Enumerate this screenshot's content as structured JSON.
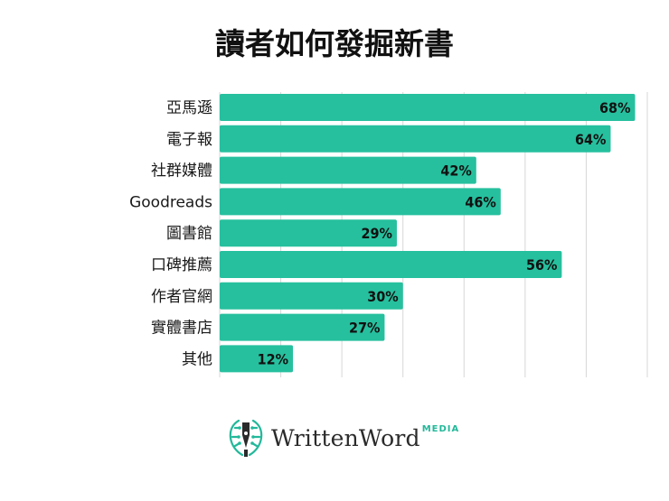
{
  "title": "讀者如何發掘新書",
  "chart_data": {
    "type": "bar",
    "orientation": "horizontal",
    "categories": [
      "亞馬遜",
      "電子報",
      "社群媒體",
      "Goodreads",
      "圖書館",
      "口碑推薦",
      "作者官網",
      "實體書店",
      "其他"
    ],
    "values": [
      68,
      64,
      42,
      46,
      29,
      56,
      30,
      27,
      12
    ],
    "value_labels": [
      "68%",
      "64%",
      "42%",
      "46%",
      "29%",
      "56%",
      "30%",
      "27%",
      "12%"
    ],
    "xlim": [
      0,
      70
    ],
    "grid": true,
    "bar_color": "#26c09e"
  },
  "logo": {
    "name": "WrittenWord",
    "suffix": "MEDIA",
    "accent_color": "#23b89a"
  }
}
